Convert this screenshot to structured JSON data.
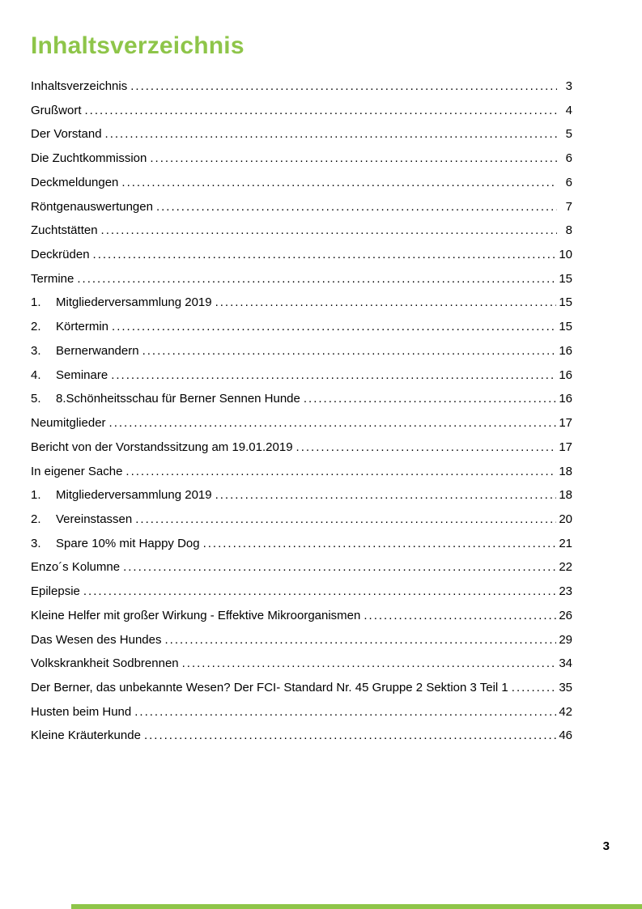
{
  "page": {
    "title": "Inhaltsverzeichnis",
    "footer_page_number": "3",
    "accent_color": "#8EC549",
    "text_color": "#000000"
  },
  "toc": {
    "entries": [
      {
        "num": "",
        "label": "Inhaltsverzeichnis",
        "page": "3"
      },
      {
        "num": "",
        "label": "Grußwort",
        "page": "4"
      },
      {
        "num": "",
        "label": "Der Vorstand",
        "page": "5"
      },
      {
        "num": "",
        "label": "Die Zuchtkommission",
        "page": "6"
      },
      {
        "num": "",
        "label": "Deckmeldungen",
        "page": "6"
      },
      {
        "num": "",
        "label": "Röntgenauswertungen",
        "page": "7"
      },
      {
        "num": "",
        "label": "Zuchtstätten",
        "page": "8"
      },
      {
        "num": "",
        "label": "Deckrüden",
        "page": "10"
      },
      {
        "num": "",
        "label": "Termine",
        "page": "15"
      },
      {
        "num": "1.",
        "label": "Mitgliederversammlung 2019",
        "page": "15"
      },
      {
        "num": "2.",
        "label": "Körtermin",
        "page": "15"
      },
      {
        "num": "3.",
        "label": "Bernerwandern",
        "page": "16"
      },
      {
        "num": "4.",
        "label": "Seminare",
        "page": "16"
      },
      {
        "num": "5.",
        "label": "8.Schönheitsschau für Berner Sennen Hunde",
        "page": "16"
      },
      {
        "num": "",
        "label": "Neumitglieder",
        "page": "17"
      },
      {
        "num": "",
        "label": "Bericht von der Vorstandssitzung am 19.01.2019",
        "page": "17"
      },
      {
        "num": "",
        "label": "In eigener Sache",
        "page": "18"
      },
      {
        "num": "1.",
        "label": "Mitgliederversammlung 2019",
        "page": "18"
      },
      {
        "num": "2.",
        "label": "Vereinstassen",
        "page": "20"
      },
      {
        "num": "3.",
        "label": "Spare 10% mit Happy Dog",
        "page": "21"
      },
      {
        "num": "",
        "label": "Enzo´s Kolumne",
        "page": "22"
      },
      {
        "num": "",
        "label": "Epilepsie",
        "page": "23"
      },
      {
        "num": "",
        "label": "Kleine Helfer mit großer Wirkung - Effektive Mikroorganismen",
        "page": "26"
      },
      {
        "num": "",
        "label": "Das Wesen des Hundes",
        "page": "29"
      },
      {
        "num": "",
        "label": "Volkskrankheit Sodbrennen",
        "page": "34"
      },
      {
        "num": "",
        "label": "Der Berner, das unbekannte Wesen? Der FCI- Standard Nr. 45 Gruppe 2 Sektion 3 Teil 1",
        "page": "35"
      },
      {
        "num": "",
        "label": "Husten beim Hund",
        "page": "42"
      },
      {
        "num": "",
        "label": "Kleine Kräuterkunde",
        "page": "46"
      }
    ]
  }
}
